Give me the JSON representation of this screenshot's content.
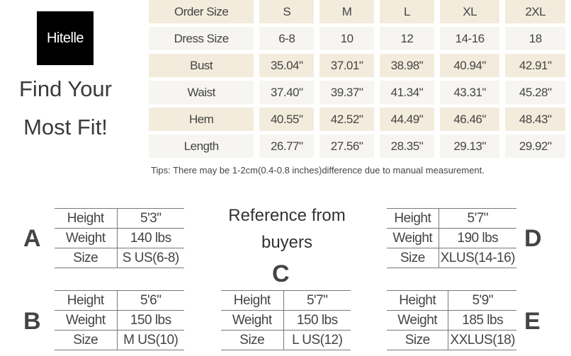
{
  "brand": {
    "logo_text": "Hitelle"
  },
  "slogan": [
    "Find Your",
    "Most Fit!"
  ],
  "size_chart": {
    "rows": [
      [
        "Order Size",
        "S",
        "M",
        "L",
        "XL",
        "2XL"
      ],
      [
        "Dress Size",
        "6-8",
        "10",
        "12",
        "14-16",
        "18"
      ],
      [
        "Bust",
        "35.04\"",
        "37.01\"",
        "38.98\"",
        "40.94\"",
        "42.91\""
      ],
      [
        "Waist",
        "37.40\"",
        "39.37\"",
        "41.34\"",
        "43.31\"",
        "45.28\""
      ],
      [
        "Hem",
        "40.55\"",
        "42.52\"",
        "44.49\"",
        "46.46\"",
        "48.43\""
      ],
      [
        "Length",
        "26.77\"",
        "27.56\"",
        "28.35\"",
        "29.13\"",
        "29.92\""
      ]
    ],
    "tips": "Tips: There may be 1-2cm(0.4-0.8 inches)difference due to manual measurement."
  },
  "reference": {
    "title": "Reference from buyers",
    "buyers": [
      {
        "letter": "A",
        "rows": [
          [
            "Height",
            "5'3\""
          ],
          [
            "Weight",
            "140 lbs"
          ],
          [
            "Size",
            "S US(6-8)"
          ]
        ]
      },
      {
        "letter": "B",
        "rows": [
          [
            "Height",
            "5'6\""
          ],
          [
            "Weight",
            "150 lbs"
          ],
          [
            "Size",
            "M US(10)"
          ]
        ]
      },
      {
        "letter": "C",
        "rows": [
          [
            "Height",
            "5'7\""
          ],
          [
            "Weight",
            "150 lbs"
          ],
          [
            "Size",
            "L US(12)"
          ]
        ]
      },
      {
        "letter": "D",
        "rows": [
          [
            "Height",
            "5'7\""
          ],
          [
            "Weight",
            "190 lbs"
          ],
          [
            "Size",
            "XLUS(14-16)"
          ]
        ]
      },
      {
        "letter": "E",
        "rows": [
          [
            "Height",
            "5'9\""
          ],
          [
            "Weight",
            "185 lbs"
          ],
          [
            "Size",
            "XXLUS(18)"
          ]
        ]
      }
    ]
  }
}
